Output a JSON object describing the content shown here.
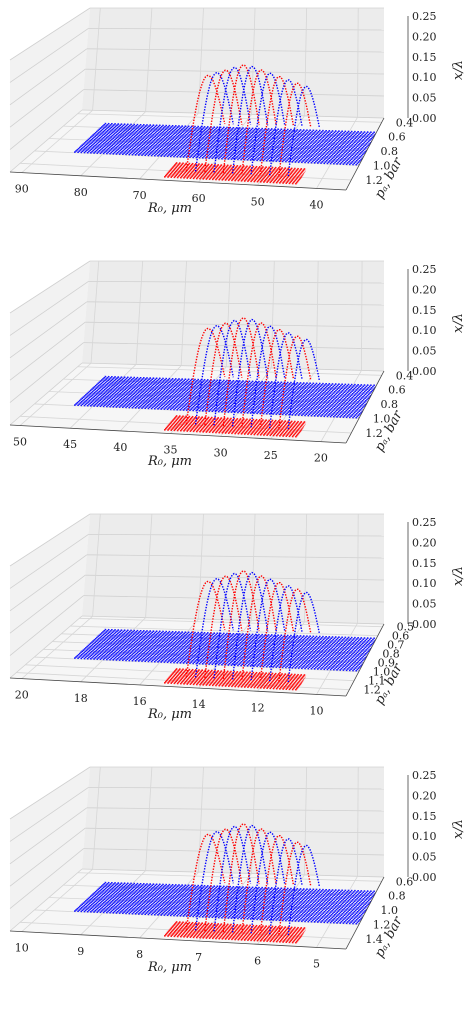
{
  "chart_data": [
    {
      "type": "scatter",
      "subtype": "3d",
      "xlabel": "R₀, μm",
      "ylabel": "pₐ, bar",
      "zlabel": "x/λ",
      "xticks": [
        "90",
        "80",
        "70",
        "60",
        "50",
        "40"
      ],
      "xlim": [
        90,
        40
      ],
      "yticks": [
        "0.4",
        "0.6",
        "0.8",
        "1.0",
        "1.2"
      ],
      "ylim": [
        0.4,
        1.2
      ],
      "zticks": [
        "0.00",
        "0.05",
        "0.10",
        "0.15",
        "0.20",
        "0.25"
      ],
      "zlim": [
        0,
        0.25
      ],
      "peak_z": 0.19,
      "series": [
        {
          "color": "#0000ff"
        },
        {
          "color": "#ff0000"
        }
      ],
      "grid": true
    },
    {
      "type": "scatter",
      "subtype": "3d",
      "xlabel": "R₀, μm",
      "ylabel": "pₐ, bar",
      "zlabel": "x/λ",
      "xticks": [
        "50",
        "45",
        "40",
        "35",
        "30",
        "25",
        "20"
      ],
      "xlim": [
        50,
        20
      ],
      "yticks": [
        "0.4",
        "0.6",
        "0.8",
        "1.0",
        "1.2"
      ],
      "ylim": [
        0.4,
        1.2
      ],
      "zticks": [
        "0.00",
        "0.05",
        "0.10",
        "0.15",
        "0.20",
        "0.25"
      ],
      "zlim": [
        0,
        0.25
      ],
      "peak_z": 0.19,
      "series": [
        {
          "color": "#0000ff"
        },
        {
          "color": "#ff0000"
        }
      ],
      "grid": true
    },
    {
      "type": "scatter",
      "subtype": "3d",
      "xlabel": "R₀, μm",
      "ylabel": "pₐ, bar",
      "zlabel": "x/λ",
      "xticks": [
        "20",
        "18",
        "16",
        "14",
        "12",
        "10"
      ],
      "xlim": [
        20,
        10
      ],
      "yticks": [
        "0.5",
        "0.6",
        "0.7",
        "0.8",
        "0.9",
        "1.0",
        "1.1",
        "1.2"
      ],
      "ylim": [
        0.5,
        1.2
      ],
      "zticks": [
        "0.00",
        "0.05",
        "0.10",
        "0.15",
        "0.20",
        "0.25"
      ],
      "zlim": [
        0,
        0.25
      ],
      "peak_z": 0.19,
      "series": [
        {
          "color": "#0000ff"
        },
        {
          "color": "#ff0000"
        }
      ],
      "grid": true
    },
    {
      "type": "scatter",
      "subtype": "3d",
      "xlabel": "R₀, μm",
      "ylabel": "pₐ, bar",
      "zlabel": "x/λ",
      "xticks": [
        "10",
        "9",
        "8",
        "7",
        "6",
        "5"
      ],
      "xlim": [
        10,
        5
      ],
      "yticks": [
        "0.6",
        "0.8",
        "1.0",
        "1.2",
        "1.4"
      ],
      "ylim": [
        0.6,
        1.4
      ],
      "zticks": [
        "0.00",
        "0.05",
        "0.10",
        "0.15",
        "0.20",
        "0.25"
      ],
      "zlim": [
        0,
        0.25
      ],
      "peak_z": 0.19,
      "series": [
        {
          "color": "#0000ff"
        },
        {
          "color": "#ff0000"
        }
      ],
      "grid": true
    }
  ]
}
